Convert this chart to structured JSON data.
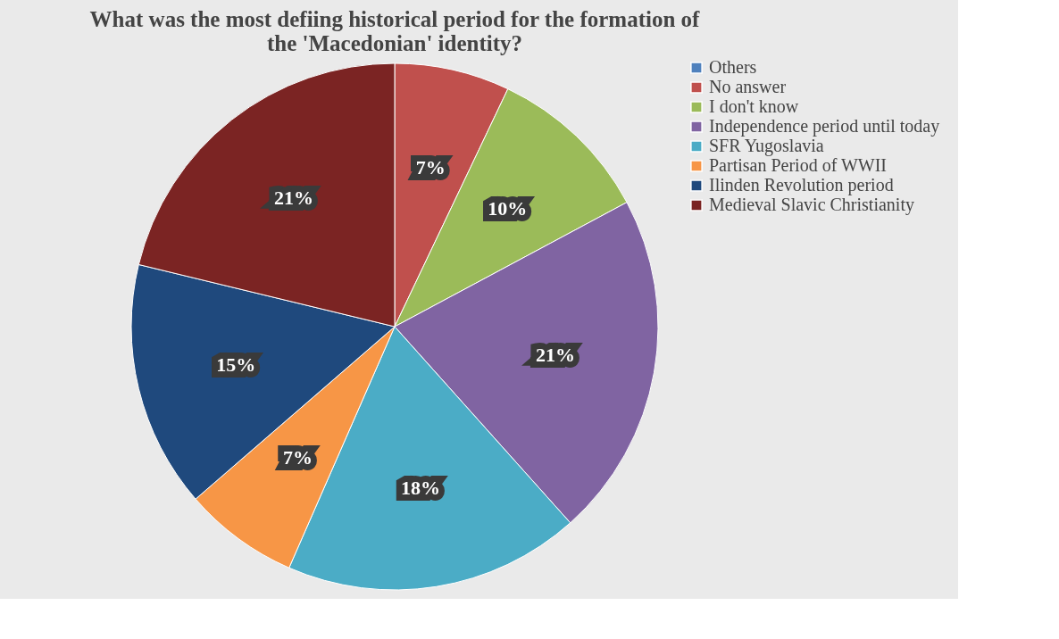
{
  "chart_data": {
    "type": "pie",
    "title": "What was the most defiing historical period for the formation of\nthe 'Macedonian' identity?",
    "categories": [
      "Others",
      "No answer",
      "I don't know",
      "Independence period until today",
      "SFR Yugoslavia",
      "Partisan Period of WWII",
      "Ilinden Revolution period",
      "Medieval Slavic Christianity"
    ],
    "values": [
      0,
      7,
      10,
      21,
      18,
      7,
      15,
      21
    ],
    "value_labels": [
      null,
      "7%",
      "10%",
      "21%",
      "18%",
      "7%",
      "15%",
      "21%"
    ],
    "colors": [
      "#4f81bd",
      "#c0504d",
      "#9bbb59",
      "#8064a2",
      "#4bacc6",
      "#f79646",
      "#1f497d",
      "#7b2423"
    ],
    "legend": "right"
  }
}
